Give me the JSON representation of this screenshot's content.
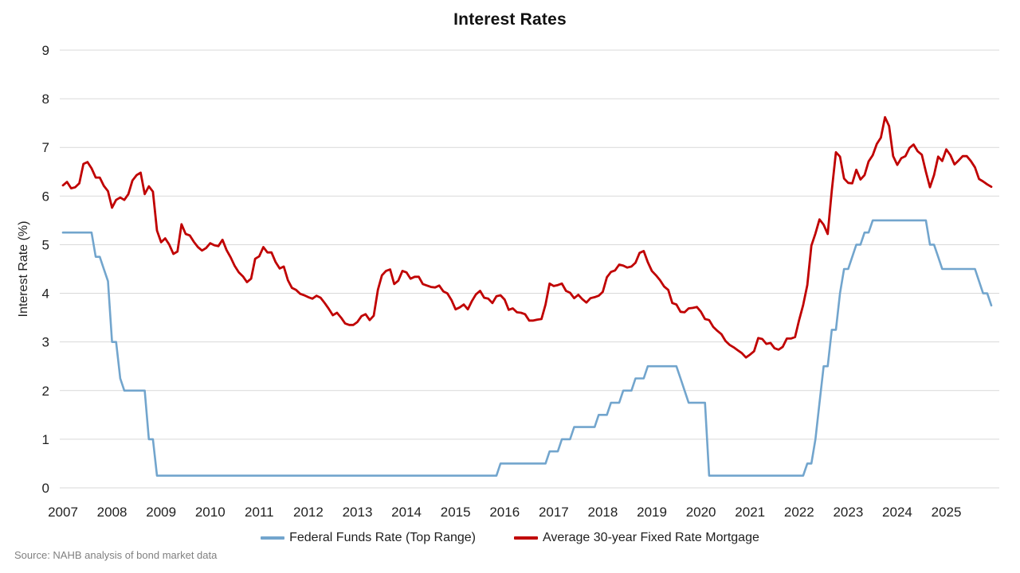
{
  "title": "Interest Rates",
  "y_axis_label": "Interest Rate (%)",
  "source_note": "Source: NAHB analysis of bond market data",
  "colors": {
    "federal_funds_blue": "#72A5CD",
    "mortgage_red": "#C00000",
    "gridline": "#D9D9D9",
    "axis_text": "#1F1F1F",
    "source_text": "#808080"
  },
  "legend": [
    {
      "label": "Federal Funds Rate (Top Range)",
      "color": "#72A5CD"
    },
    {
      "label": "Average 30-year Fixed Rate Mortgage",
      "color": "#C00000"
    }
  ],
  "chart_data": {
    "type": "line",
    "title": "Interest Rates",
    "xlabel": "",
    "ylabel": "Interest Rate (%)",
    "ylim": [
      0,
      9
    ],
    "y_ticks": [
      0,
      1,
      2,
      3,
      4,
      5,
      6,
      7,
      8,
      9
    ],
    "grid": "horizontal",
    "legend_position": "bottom",
    "frequency": "monthly",
    "x_start": "2007-01",
    "x_end": "2025-12",
    "x_tick_labels": [
      "2007",
      "2008",
      "2009",
      "2010",
      "2011",
      "2012",
      "2013",
      "2014",
      "2015",
      "2016",
      "2017",
      "2018",
      "2019",
      "2020",
      "2021",
      "2022",
      "2023",
      "2024",
      "2025"
    ],
    "months_per_x_tick": 12,
    "series": [
      {
        "name": "Federal Funds Rate (Top Range)",
        "color": "#72A5CD",
        "values": [
          5.25,
          5.25,
          5.25,
          5.25,
          5.25,
          5.25,
          5.25,
          5.25,
          4.75,
          4.75,
          4.5,
          4.25,
          3.0,
          3.0,
          2.25,
          2.0,
          2.0,
          2.0,
          2.0,
          2.0,
          2.0,
          1.0,
          1.0,
          0.25,
          0.25,
          0.25,
          0.25,
          0.25,
          0.25,
          0.25,
          0.25,
          0.25,
          0.25,
          0.25,
          0.25,
          0.25,
          0.25,
          0.25,
          0.25,
          0.25,
          0.25,
          0.25,
          0.25,
          0.25,
          0.25,
          0.25,
          0.25,
          0.25,
          0.25,
          0.25,
          0.25,
          0.25,
          0.25,
          0.25,
          0.25,
          0.25,
          0.25,
          0.25,
          0.25,
          0.25,
          0.25,
          0.25,
          0.25,
          0.25,
          0.25,
          0.25,
          0.25,
          0.25,
          0.25,
          0.25,
          0.25,
          0.25,
          0.25,
          0.25,
          0.25,
          0.25,
          0.25,
          0.25,
          0.25,
          0.25,
          0.25,
          0.25,
          0.25,
          0.25,
          0.25,
          0.25,
          0.25,
          0.25,
          0.25,
          0.25,
          0.25,
          0.25,
          0.25,
          0.25,
          0.25,
          0.25,
          0.25,
          0.25,
          0.25,
          0.25,
          0.25,
          0.25,
          0.25,
          0.25,
          0.25,
          0.25,
          0.25,
          0.5,
          0.5,
          0.5,
          0.5,
          0.5,
          0.5,
          0.5,
          0.5,
          0.5,
          0.5,
          0.5,
          0.5,
          0.75,
          0.75,
          0.75,
          1.0,
          1.0,
          1.0,
          1.25,
          1.25,
          1.25,
          1.25,
          1.25,
          1.25,
          1.5,
          1.5,
          1.5,
          1.75,
          1.75,
          1.75,
          2.0,
          2.0,
          2.0,
          2.25,
          2.25,
          2.25,
          2.5,
          2.5,
          2.5,
          2.5,
          2.5,
          2.5,
          2.5,
          2.5,
          2.25,
          2.0,
          1.75,
          1.75,
          1.75,
          1.75,
          1.75,
          0.25,
          0.25,
          0.25,
          0.25,
          0.25,
          0.25,
          0.25,
          0.25,
          0.25,
          0.25,
          0.25,
          0.25,
          0.25,
          0.25,
          0.25,
          0.25,
          0.25,
          0.25,
          0.25,
          0.25,
          0.25,
          0.25,
          0.25,
          0.25,
          0.5,
          0.5,
          1.0,
          1.75,
          2.5,
          2.5,
          3.25,
          3.25,
          4.0,
          4.5,
          4.5,
          4.75,
          5.0,
          5.0,
          5.25,
          5.25,
          5.5,
          5.5,
          5.5,
          5.5,
          5.5,
          5.5,
          5.5,
          5.5,
          5.5,
          5.5,
          5.5,
          5.5,
          5.5,
          5.5,
          5.0,
          5.0,
          4.75,
          4.5,
          4.5,
          4.5,
          4.5,
          4.5,
          4.5,
          4.5,
          4.5,
          4.5,
          4.25,
          4.0,
          4.0,
          3.75
        ]
      },
      {
        "name": "Average 30-year Fixed Rate Mortgage",
        "color": "#C00000",
        "values": [
          6.22,
          6.29,
          6.16,
          6.18,
          6.26,
          6.66,
          6.7,
          6.57,
          6.38,
          6.38,
          6.21,
          6.1,
          5.76,
          5.92,
          5.97,
          5.92,
          6.04,
          6.32,
          6.43,
          6.48,
          6.04,
          6.2,
          6.09,
          5.29,
          5.05,
          5.13,
          5.0,
          4.81,
          4.86,
          5.42,
          5.22,
          5.19,
          5.06,
          4.95,
          4.88,
          4.93,
          5.03,
          4.99,
          4.97,
          5.1,
          4.89,
          4.74,
          4.56,
          4.43,
          4.35,
          4.23,
          4.3,
          4.71,
          4.76,
          4.95,
          4.84,
          4.84,
          4.64,
          4.51,
          4.55,
          4.27,
          4.11,
          4.07,
          3.99,
          3.96,
          3.92,
          3.89,
          3.95,
          3.91,
          3.8,
          3.68,
          3.55,
          3.6,
          3.5,
          3.38,
          3.35,
          3.35,
          3.41,
          3.53,
          3.57,
          3.45,
          3.54,
          4.07,
          4.37,
          4.46,
          4.49,
          4.19,
          4.26,
          4.46,
          4.43,
          4.3,
          4.34,
          4.34,
          4.19,
          4.16,
          4.13,
          4.12,
          4.16,
          4.04,
          4.0,
          3.86,
          3.67,
          3.71,
          3.77,
          3.67,
          3.84,
          3.98,
          4.05,
          3.91,
          3.89,
          3.8,
          3.94,
          3.96,
          3.87,
          3.66,
          3.69,
          3.61,
          3.6,
          3.57,
          3.44,
          3.44,
          3.46,
          3.47,
          3.77,
          4.2,
          4.15,
          4.17,
          4.2,
          4.05,
          4.01,
          3.9,
          3.97,
          3.88,
          3.81,
          3.9,
          3.92,
          3.95,
          4.03,
          4.33,
          4.44,
          4.47,
          4.59,
          4.57,
          4.53,
          4.55,
          4.63,
          4.83,
          4.87,
          4.64,
          4.46,
          4.37,
          4.27,
          4.14,
          4.07,
          3.8,
          3.77,
          3.62,
          3.61,
          3.69,
          3.7,
          3.72,
          3.62,
          3.47,
          3.45,
          3.31,
          3.23,
          3.16,
          3.02,
          2.94,
          2.89,
          2.83,
          2.77,
          2.68,
          2.74,
          2.81,
          3.08,
          3.06,
          2.96,
          2.98,
          2.87,
          2.84,
          2.9,
          3.07,
          3.07,
          3.1,
          3.45,
          3.76,
          4.17,
          4.98,
          5.23,
          5.52,
          5.41,
          5.22,
          6.11,
          6.9,
          6.81,
          6.36,
          6.27,
          6.26,
          6.54,
          6.34,
          6.43,
          6.71,
          6.84,
          7.07,
          7.2,
          7.62,
          7.44,
          6.82,
          6.64,
          6.78,
          6.82,
          6.99,
          7.06,
          6.92,
          6.85,
          6.5,
          6.18,
          6.43,
          6.81,
          6.72,
          6.96,
          6.84,
          6.65,
          6.73,
          6.82,
          6.82,
          6.72,
          6.59,
          6.35,
          6.3,
          6.24,
          6.19
        ]
      }
    ]
  }
}
